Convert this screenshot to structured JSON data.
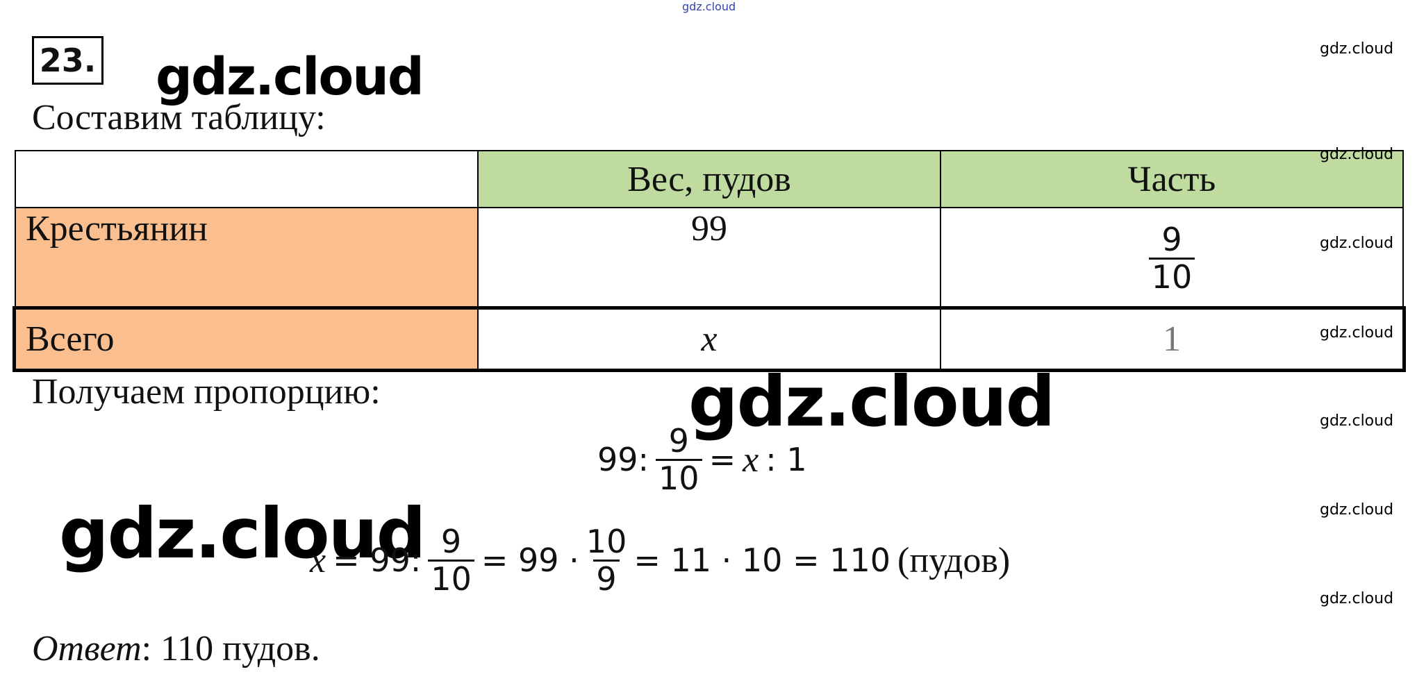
{
  "header": {
    "number": "23.",
    "watermark_top": "gdz.cloud"
  },
  "watermarks": {
    "big": [
      "gdz.cloud",
      "gdz.cloud",
      "gdz.cloud"
    ],
    "side": [
      "gdz.cloud",
      "gdz.cloud",
      "gdz.cloud",
      "gdz.cloud",
      "gdz.cloud",
      "gdz.cloud",
      "gdz.cloud"
    ]
  },
  "intro": "Составим таблицу:",
  "table": {
    "header": [
      "Вес, пудов",
      "Часть"
    ],
    "rows": [
      {
        "label": "Крестьянин",
        "weight": "99",
        "part": {
          "num": "9",
          "den": "10"
        }
      },
      {
        "label": "Всего",
        "weight": {
          "var": "x"
        },
        "part": "1"
      }
    ]
  },
  "proportion_intro": "Получаем пропорцию:",
  "equations": [
    [
      "99:",
      {
        "num": "9",
        "den": "10"
      },
      "=",
      {
        "var": "x"
      },
      ": 1"
    ],
    [
      {
        "var": "x"
      },
      "= 99:",
      {
        "num": "9",
        "den": "10"
      },
      "= 99 ·",
      {
        "num": "10",
        "den": "9"
      },
      "= 11 · 10 = 110",
      {
        "text": "(пудов)"
      }
    ]
  ],
  "answer": {
    "label": "Ответ",
    "text": ": 110 пудов."
  }
}
